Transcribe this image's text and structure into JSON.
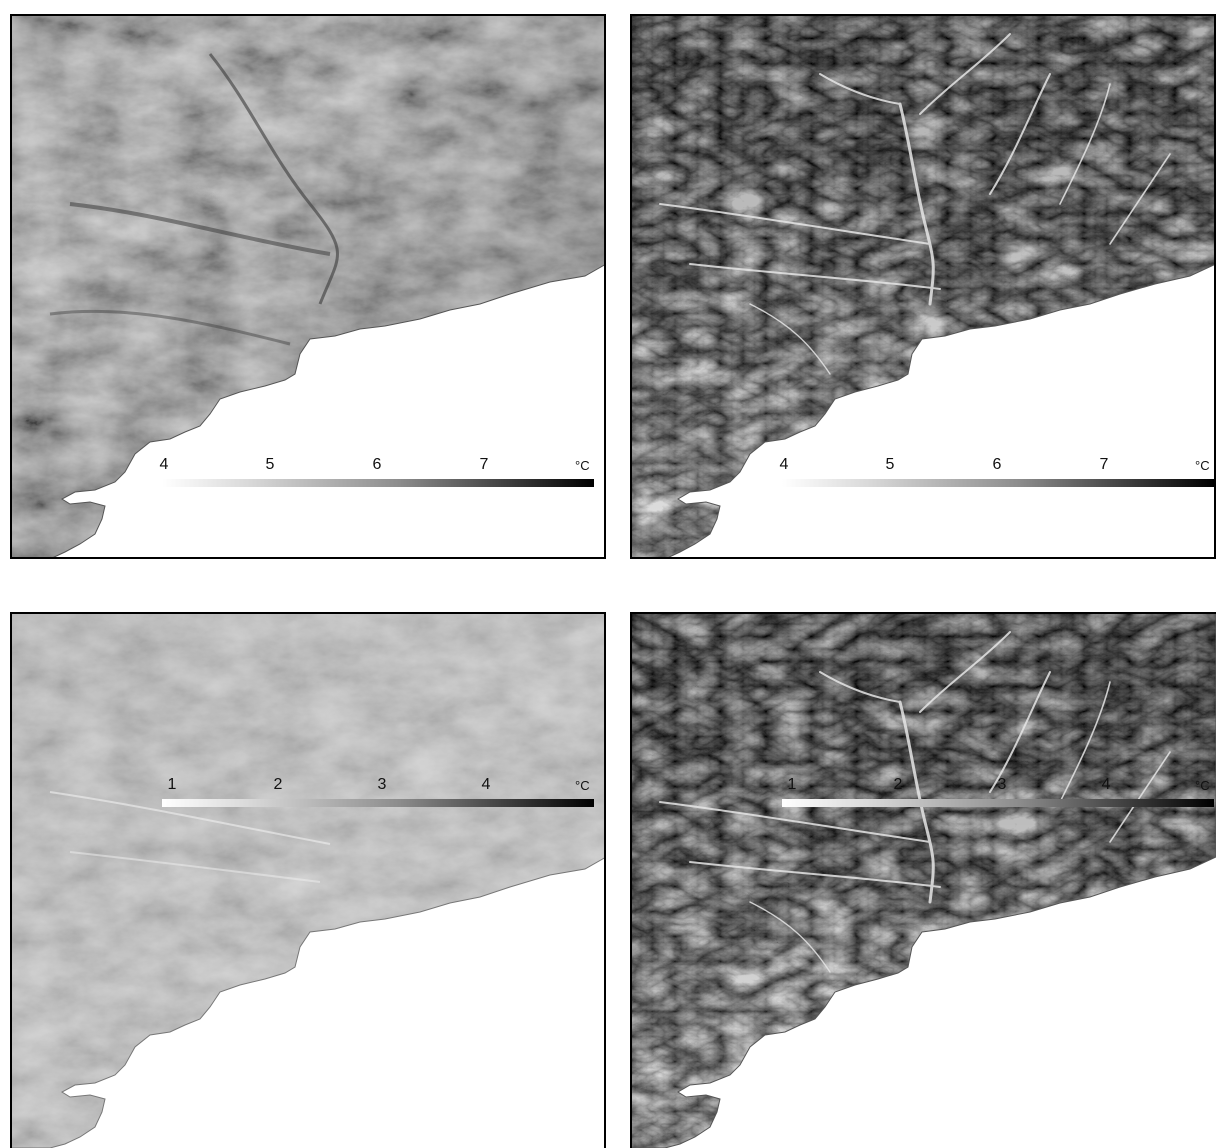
{
  "panels": [
    {
      "id": "top-left",
      "style": "relief",
      "legend": {
        "ticks": [
          "4",
          "5",
          "6",
          "7"
        ],
        "unit": "°C",
        "min": 4,
        "max": 8,
        "gradient": [
          "#ffffff",
          "#000000"
        ]
      }
    },
    {
      "id": "top-right",
      "style": "dendritic",
      "legend": {
        "ticks": [
          "4",
          "5",
          "6",
          "7"
        ],
        "unit": "°C",
        "min": 4,
        "max": 8,
        "gradient": [
          "#ffffff",
          "#000000"
        ]
      }
    },
    {
      "id": "bottom-left",
      "style": "relief-light",
      "legend": {
        "ticks": [
          "1",
          "2",
          "3",
          "4"
        ],
        "unit": "°C",
        "min": 1,
        "max": 5,
        "gradient": [
          "#ffffff",
          "#000000"
        ]
      }
    },
    {
      "id": "bottom-right",
      "style": "dendritic",
      "legend": {
        "ticks": [
          "1",
          "2",
          "3",
          "4"
        ],
        "unit": "°C",
        "min": 1,
        "max": 5,
        "gradient": [
          "#ffffff",
          "#000000"
        ]
      }
    }
  ],
  "colors": {
    "sea": "#ffffff",
    "frame": "#000000"
  }
}
